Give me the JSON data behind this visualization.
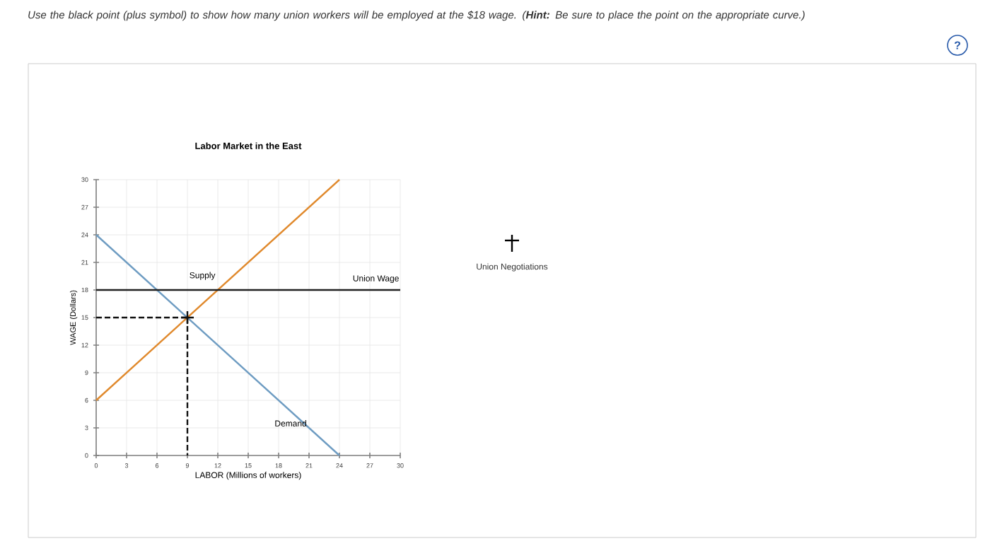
{
  "chart_data": {
    "type": "line",
    "title": "Labor Market in the East",
    "xlabel": "LABOR (Millions of workers)",
    "ylabel": "WAGE (Dollars)",
    "xlim": [
      0,
      30
    ],
    "ylim": [
      0,
      30
    ],
    "xticks": [
      0,
      3,
      6,
      9,
      12,
      15,
      18,
      21,
      24,
      27,
      30
    ],
    "yticks": [
      0,
      3,
      6,
      9,
      12,
      15,
      18,
      21,
      24,
      27,
      30
    ],
    "grid": true,
    "series": [
      {
        "name": "Supply",
        "color": "#e0892c",
        "x": [
          0,
          24
        ],
        "values": [
          6,
          30
        ]
      },
      {
        "name": "Demand",
        "color": "#6e9cc2",
        "x": [
          0,
          24
        ],
        "values": [
          24,
          0
        ]
      },
      {
        "name": "Union Wage",
        "color": "#222222",
        "x": [
          0,
          30
        ],
        "values": [
          18,
          18
        ]
      },
      {
        "color": "#111111",
        "line_style": "dashed",
        "x": [
          0,
          9
        ],
        "values": [
          15,
          15
        ]
      },
      {
        "color": "#111111",
        "line_style": "dashed",
        "x": [
          9,
          9
        ],
        "values": [
          15,
          0
        ]
      },
      {
        "color": "#111111",
        "type": "scatter",
        "marker": "cross",
        "x": [
          9
        ],
        "values": [
          15
        ]
      }
    ],
    "annotations": [
      "Use the black point (plus symbol) to show how many union workers will be employed at the $18 wage. (**Hint:** Be sure to place the point on the appropriate curve.)",
      "Union Negotiations",
      "?"
    ]
  }
}
